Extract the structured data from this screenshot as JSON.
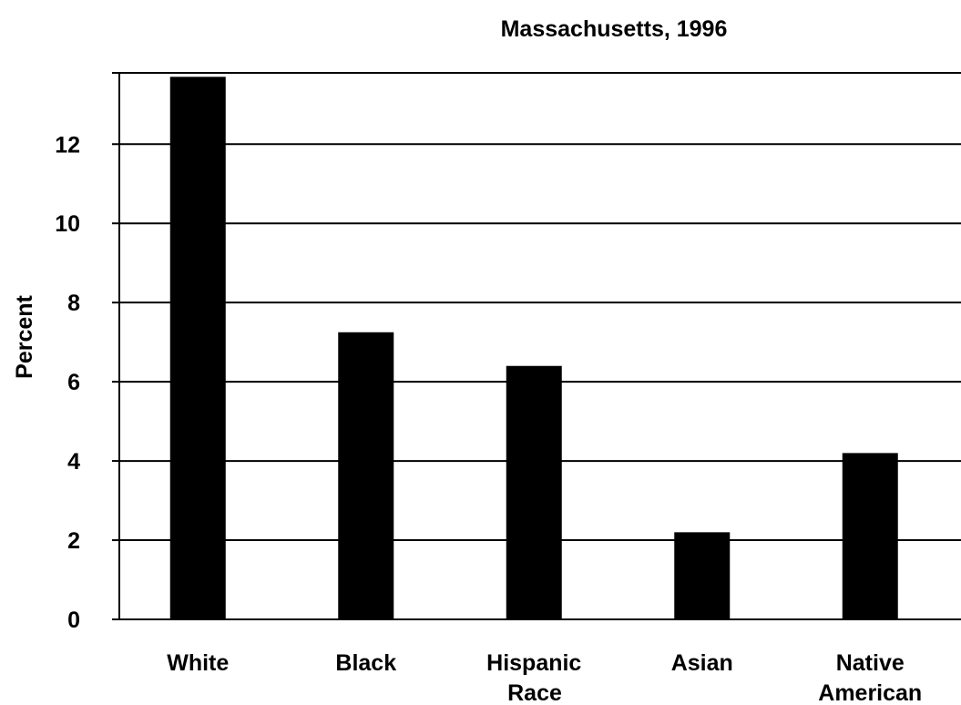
{
  "chart_data": {
    "type": "bar",
    "title": "Massachusetts, 1996",
    "ylabel": "Percent",
    "xlabel": "Race",
    "categories": [
      [
        "White"
      ],
      [
        "Black"
      ],
      [
        "Hispanic"
      ],
      [
        "Asian"
      ],
      [
        "Native",
        "American"
      ]
    ],
    "values": [
      13.7,
      7.25,
      6.4,
      2.2,
      4.2
    ],
    "ylim": [
      0,
      13.8
    ],
    "yticks": [
      0,
      2,
      4,
      6,
      8,
      10,
      12
    ],
    "grid": true,
    "legend": "none",
    "colors": {
      "bar": "#000000",
      "grid": "#000000",
      "background": "#ffffff"
    }
  }
}
